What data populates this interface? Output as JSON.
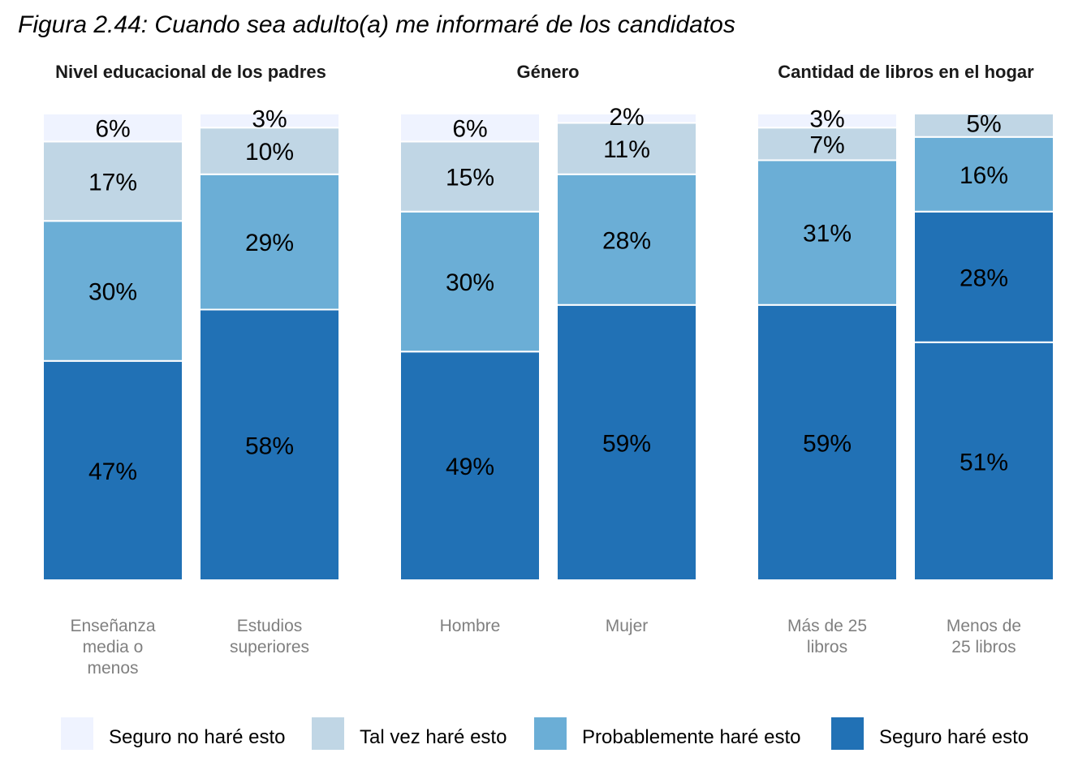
{
  "chart_data": {
    "type": "bar",
    "stacked": true,
    "title": "Figura 2.44: Cuando sea adulto(a) me informaré de los candidatos",
    "ylim": [
      0,
      100
    ],
    "grid": false,
    "legend_placement": "bottom",
    "series_names": [
      "Seguro no haré esto",
      "Tal vez haré esto",
      "Probablemente haré esto",
      "Seguro haré esto"
    ],
    "series_colors": [
      "#eff3ff",
      "#c0d6e5",
      "#6baed6",
      "#2171b5"
    ],
    "panels": [
      {
        "title": "Nivel educacional de los padres",
        "categories": [
          "Enseñanza media o menos",
          "Estudios superiores"
        ],
        "category_lines": [
          [
            "Enseñanza",
            "media o",
            "menos"
          ],
          [
            "Estudios",
            "superiores"
          ]
        ],
        "series": [
          {
            "name": "Seguro no haré esto",
            "values": [
              6,
              3
            ],
            "labels": [
              "6%",
              "3%"
            ]
          },
          {
            "name": "Tal vez haré esto",
            "values": [
              17,
              10
            ],
            "labels": [
              "17%",
              "10%"
            ]
          },
          {
            "name": "Probablemente haré esto",
            "values": [
              30,
              29
            ],
            "labels": [
              "30%",
              "29%"
            ]
          },
          {
            "name": "Seguro haré esto",
            "values": [
              47,
              58
            ],
            "labels": [
              "47%",
              "58%"
            ]
          }
        ]
      },
      {
        "title": "Género",
        "categories": [
          "Hombre",
          "Mujer"
        ],
        "category_lines": [
          [
            "Hombre"
          ],
          [
            "Mujer"
          ]
        ],
        "series": [
          {
            "name": "Seguro no haré esto",
            "values": [
              6,
              2
            ],
            "labels": [
              "6%",
              "2%"
            ]
          },
          {
            "name": "Tal vez haré esto",
            "values": [
              15,
              11
            ],
            "labels": [
              "15%",
              "11%"
            ]
          },
          {
            "name": "Probablemente haré esto",
            "values": [
              30,
              28
            ],
            "labels": [
              "30%",
              "28%"
            ]
          },
          {
            "name": "Seguro haré esto",
            "values": [
              49,
              59
            ],
            "labels": [
              "49%",
              "59%"
            ]
          }
        ]
      },
      {
        "title": "Cantidad de libros en el hogar",
        "categories": [
          "Más de 25 libros",
          "Menos de 25 libros"
        ],
        "category_lines": [
          [
            "Más de 25",
            "libros"
          ],
          [
            "Menos de",
            "25 libros"
          ]
        ],
        "series": [
          {
            "name": "Seguro no haré esto",
            "values": [
              3,
              0
            ],
            "labels": [
              "3%",
              ""
            ]
          },
          {
            "name": "Tal vez haré esto",
            "values": [
              7,
              5
            ],
            "labels": [
              "7%",
              "5%"
            ]
          },
          {
            "name": "Probablemente haré esto",
            "values": [
              31,
              16
            ],
            "labels": [
              "31%",
              "16%"
            ]
          },
          {
            "name": "Seguro haré esto",
            "values": [
              59,
              28
            ],
            "labels": [
              "59%",
              "28%"
            ]
          },
          {
            "name": "Seguro haré esto",
            "values": [
              0,
              51
            ],
            "labels": [
              "",
              "51%"
            ]
          }
        ]
      }
    ]
  }
}
